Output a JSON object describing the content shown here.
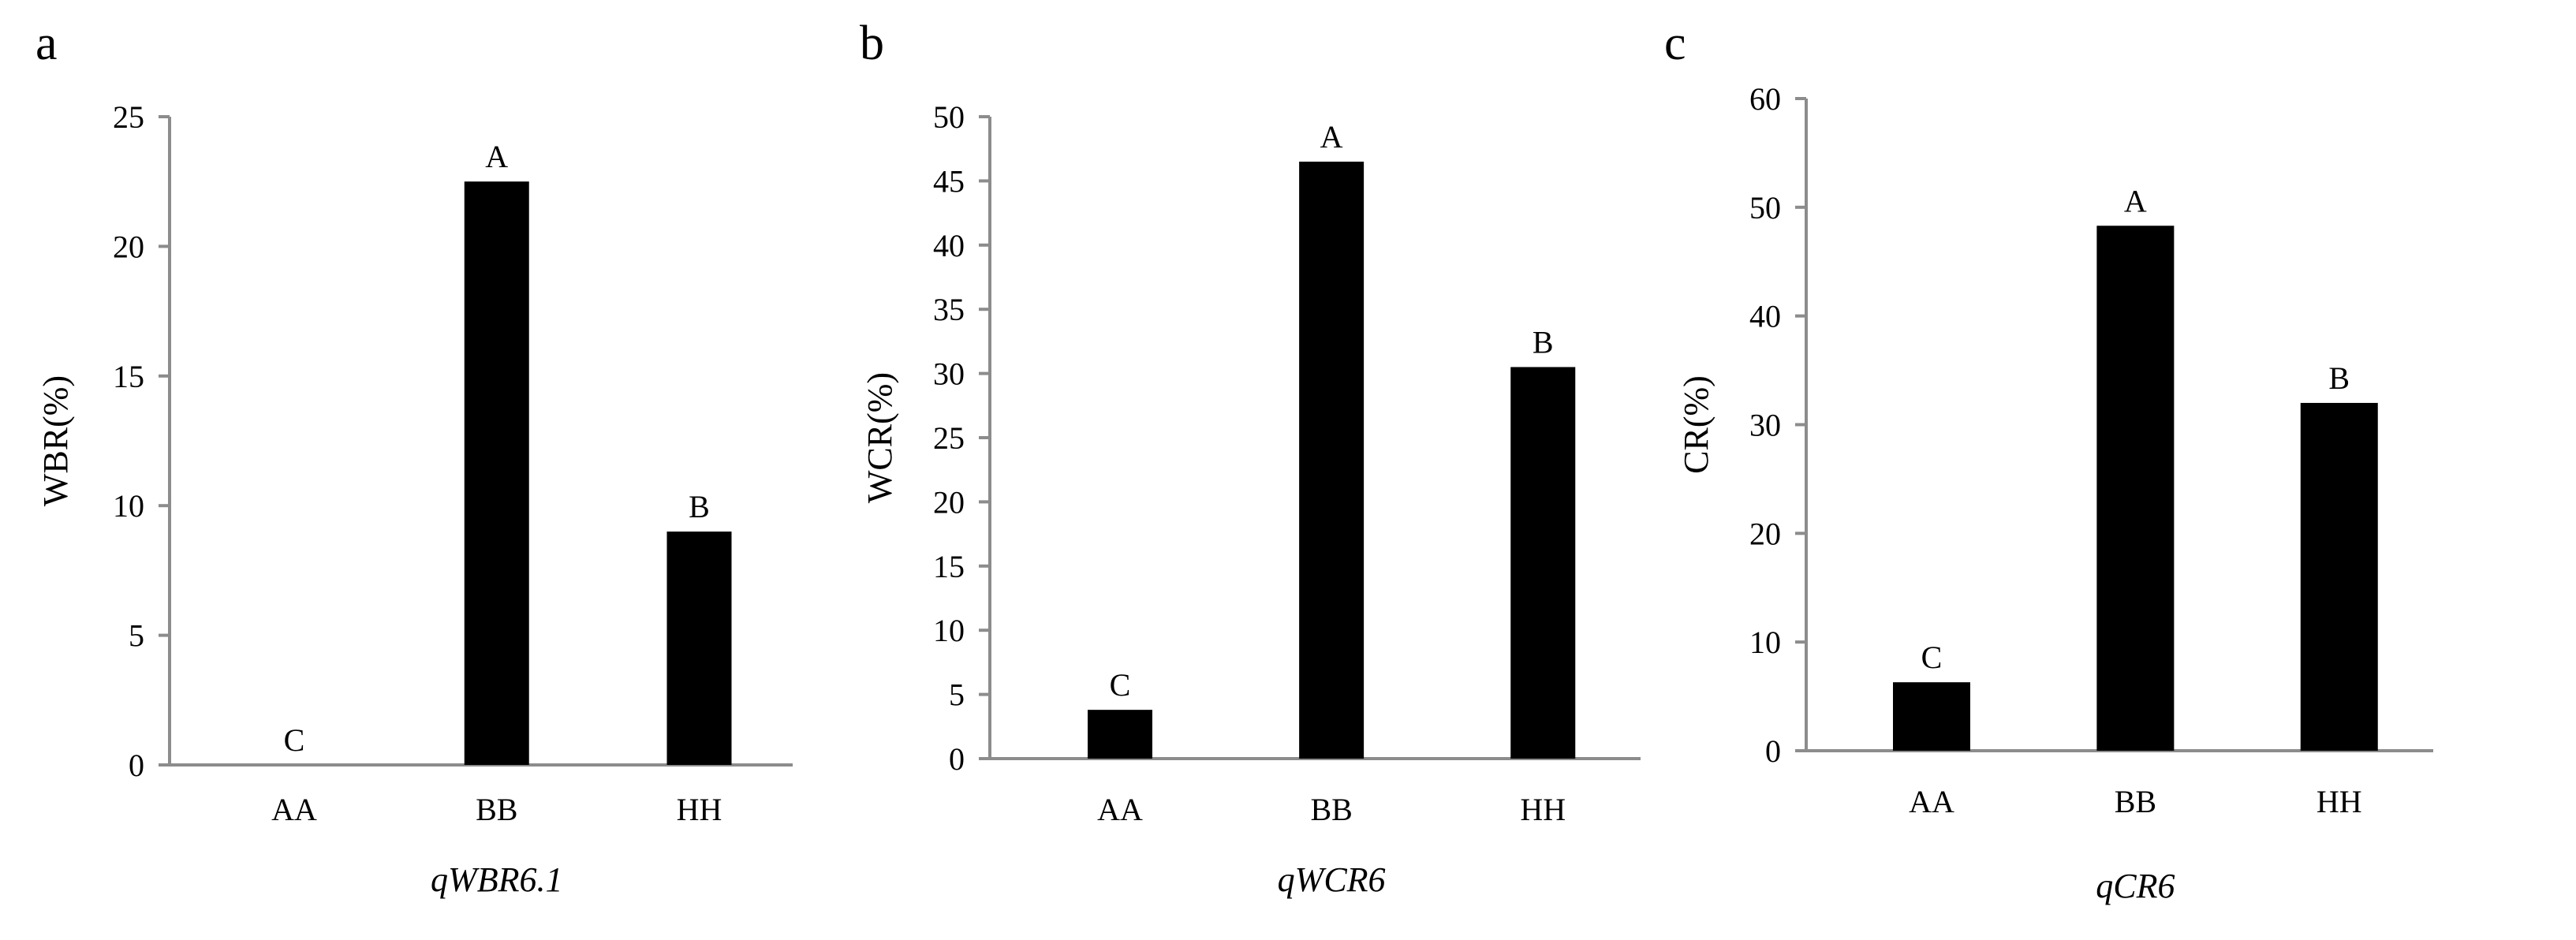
{
  "chart_data": [
    {
      "type": "bar",
      "panel": "a",
      "categories": [
        "AA",
        "BB",
        "HH"
      ],
      "values": [
        0,
        22.5,
        9
      ],
      "significance": [
        "C",
        "A",
        "B"
      ],
      "xlabel": "qWBR6.1",
      "ylabel": "WBR(%)",
      "ylim": [
        0,
        25
      ],
      "yticks": [
        "0",
        "5",
        "10",
        "15",
        "20",
        "25"
      ],
      "grid": false,
      "legend": "none",
      "bar_color": "#000000"
    },
    {
      "type": "bar",
      "panel": "b",
      "categories": [
        "AA",
        "BB",
        "HH"
      ],
      "values": [
        3.8,
        46.5,
        30.5
      ],
      "significance": [
        "C",
        "A",
        "B"
      ],
      "xlabel": "qWCR6",
      "ylabel": "WCR(%)",
      "ylim": [
        0,
        50
      ],
      "yticks": [
        "0",
        "5",
        "10",
        "15",
        "20",
        "25",
        "30",
        "35",
        "40",
        "45",
        "50"
      ],
      "grid": false,
      "legend": "none",
      "bar_color": "#000000"
    },
    {
      "type": "bar",
      "panel": "c",
      "categories": [
        "AA",
        "BB",
        "HH"
      ],
      "values": [
        6.3,
        48.3,
        32
      ],
      "significance": [
        "C",
        "A",
        "B"
      ],
      "xlabel": "qCR6",
      "ylabel": "CR(%)",
      "ylim": [
        0,
        60
      ],
      "yticks": [
        "0",
        "10",
        "20",
        "30",
        "40",
        "50",
        "60"
      ],
      "grid": false,
      "legend": "none",
      "bar_color": "#000000"
    }
  ]
}
